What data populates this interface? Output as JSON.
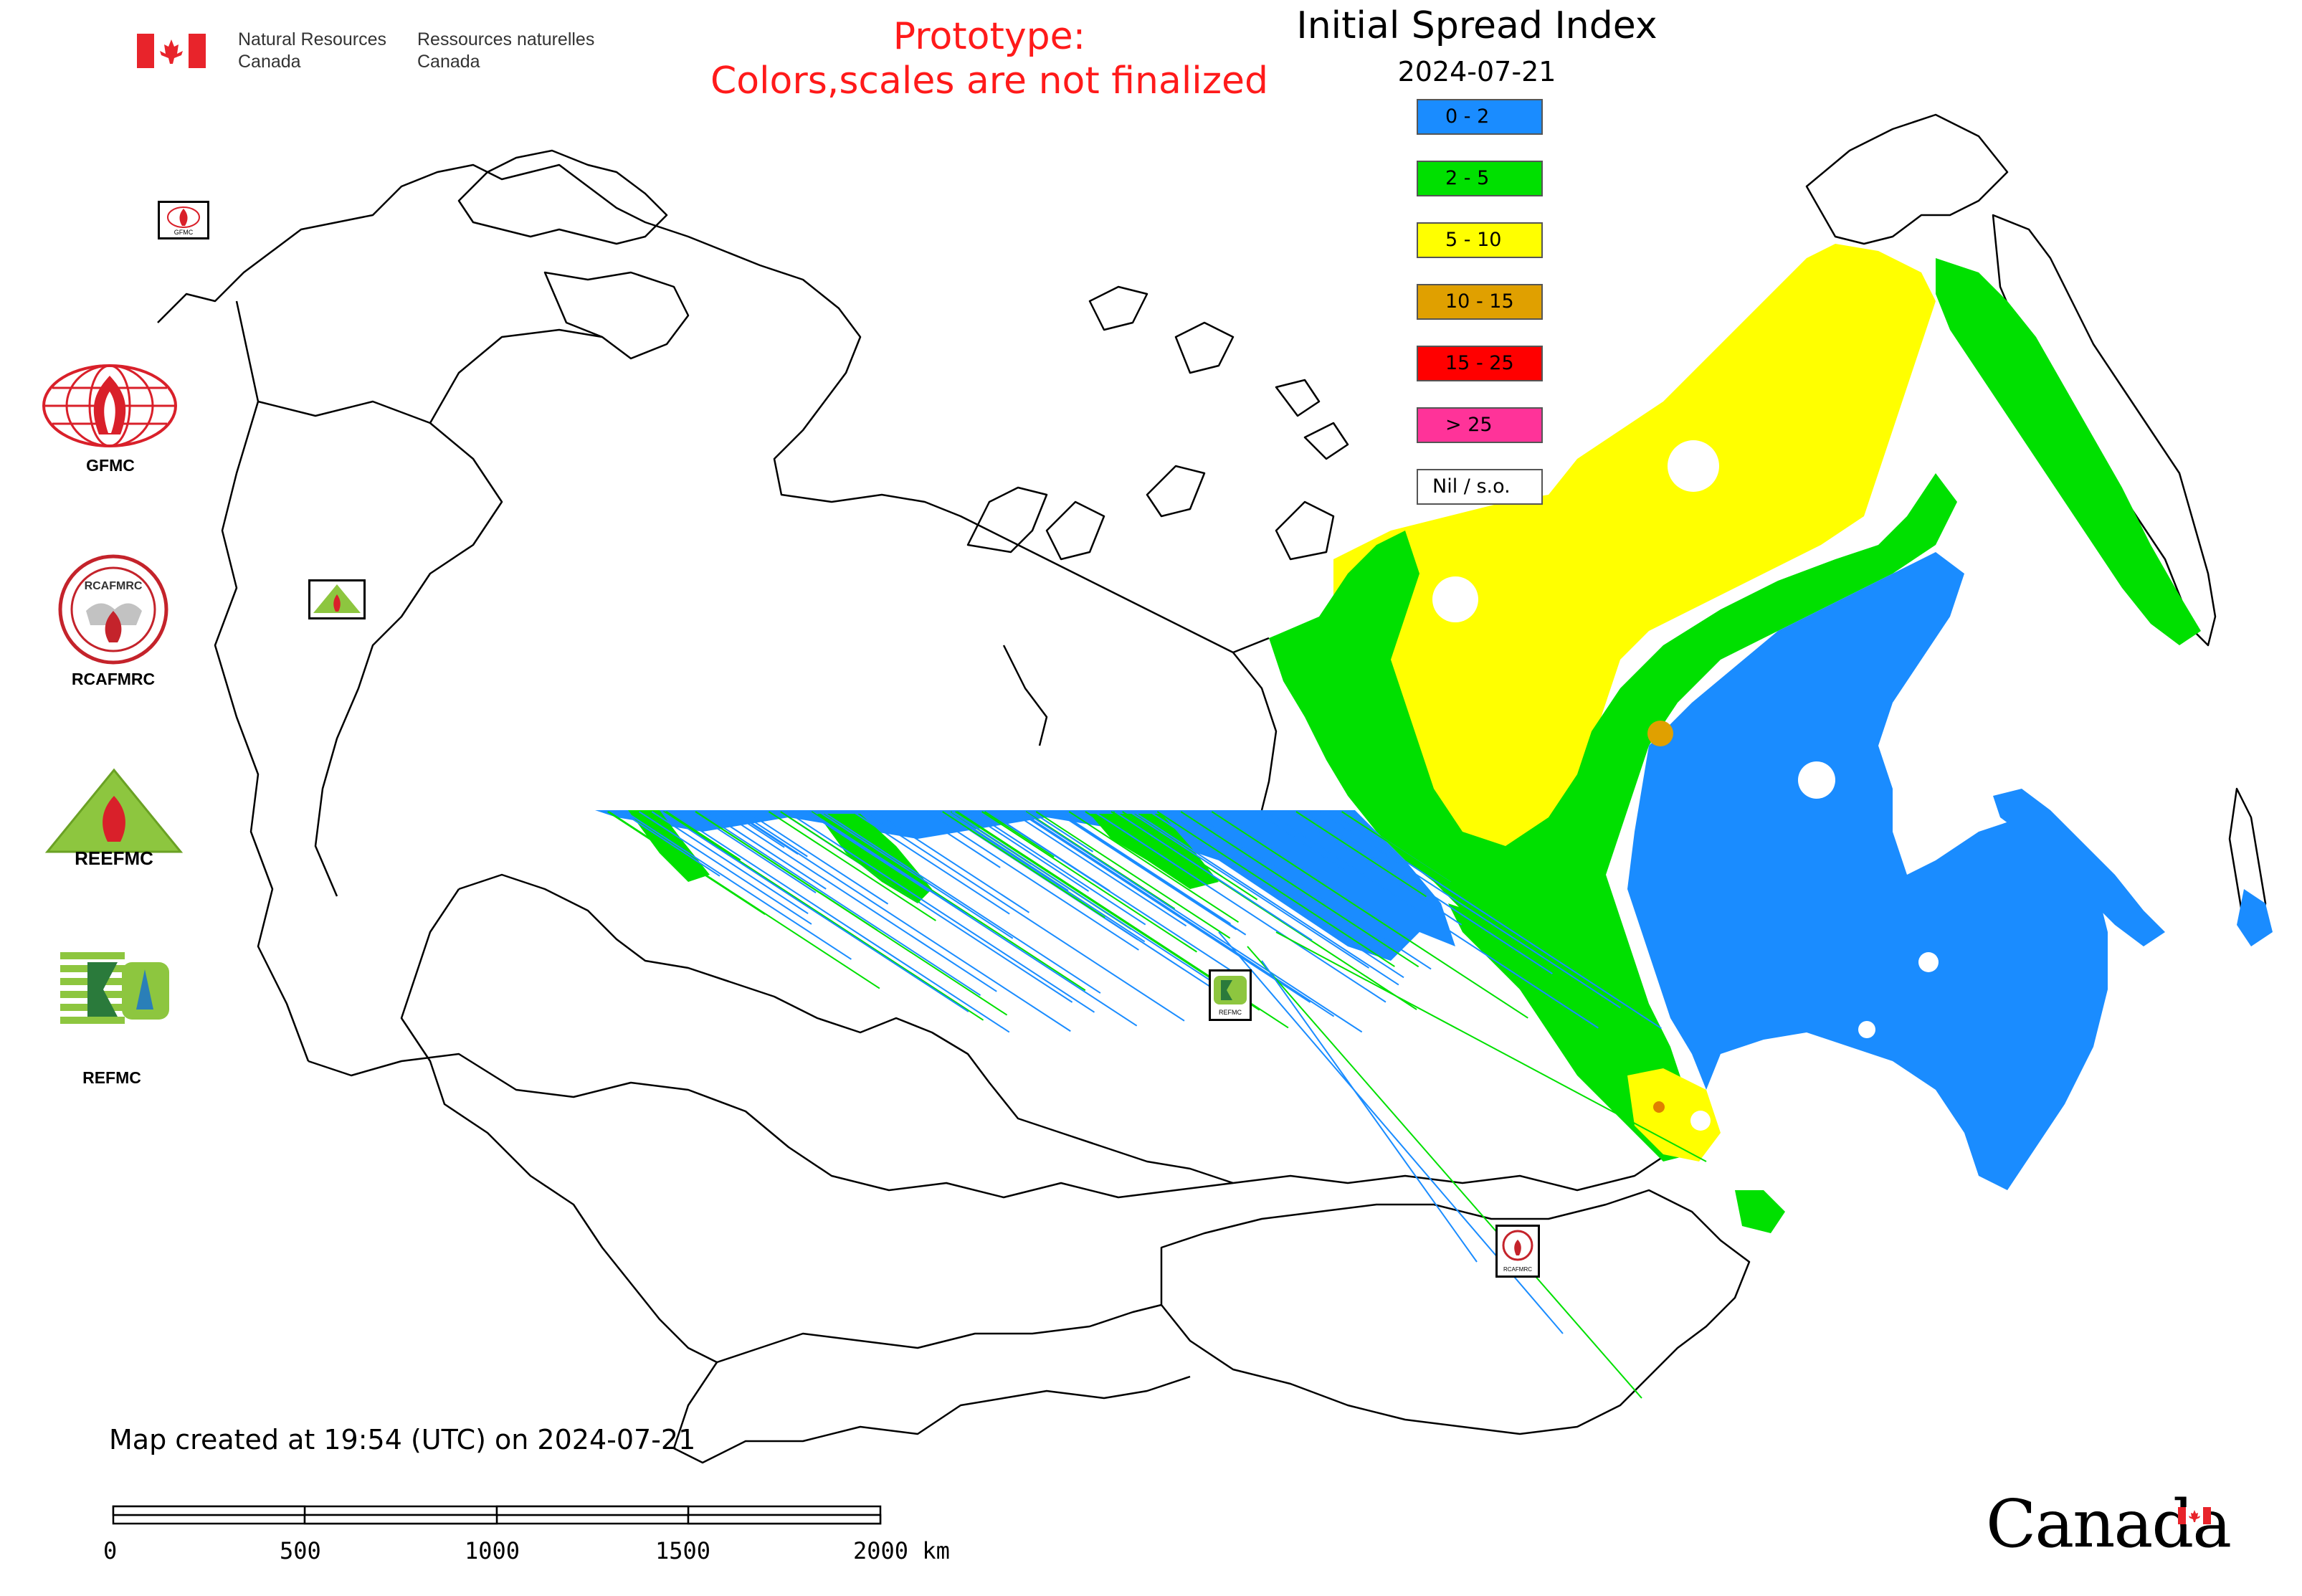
{
  "header": {
    "agency_en_line1": "Natural Resources",
    "agency_en_line2": "Canada",
    "agency_fr_line1": "Ressources naturelles",
    "agency_fr_line2": "Canada",
    "prototype_line1": "Prototype:",
    "prototype_line2": "Colors,scales are not finalized",
    "title": "Initial Spread Index",
    "date": "2024-07-21"
  },
  "legend": {
    "items": [
      {
        "label": "0 - 2",
        "color": "#1a8cff"
      },
      {
        "label": "2 - 5",
        "color": "#00e000"
      },
      {
        "label": "5 - 10",
        "color": "#ffff00"
      },
      {
        "label": "10 - 15",
        "color": "#e0a000"
      },
      {
        "label": "15 - 25",
        "color": "#ff0000"
      },
      {
        "label": "> 25",
        "color": "#ff3399"
      },
      {
        "label": "Nil / s.o.",
        "color": "#ffffff"
      }
    ]
  },
  "organizations": [
    {
      "label": "GFMC",
      "icon": "gfmc-logo-icon"
    },
    {
      "label": "RCAFMRC",
      "icon": "rcafmrc-logo-icon"
    },
    {
      "label": "REEFMC",
      "icon": "reefmc-logo-icon"
    },
    {
      "label": "REFMC",
      "icon": "refmc-logo-icon"
    }
  ],
  "logo_text": {
    "gfmc": "GFMC",
    "rcafmrc": "RCAFMRC",
    "reefmc": "REEFMC",
    "refmc": "REFMC"
  },
  "footer": {
    "created": "Map created at 19:54 (UTC) on 2024-07-21",
    "scale_labels": [
      "0",
      "500",
      "1000",
      "1500",
      "2000 km"
    ],
    "wordmark": "Canada"
  },
  "colors": {
    "spread_low": "#1a8cff",
    "spread_moderate": "#00e000",
    "spread_high": "#ffff00",
    "spread_very_high": "#e0a000",
    "spread_extreme": "#ff0000",
    "spread_max": "#ff3399",
    "prototype_text": "#ff1a1a",
    "flag_red": "#e8242b"
  }
}
